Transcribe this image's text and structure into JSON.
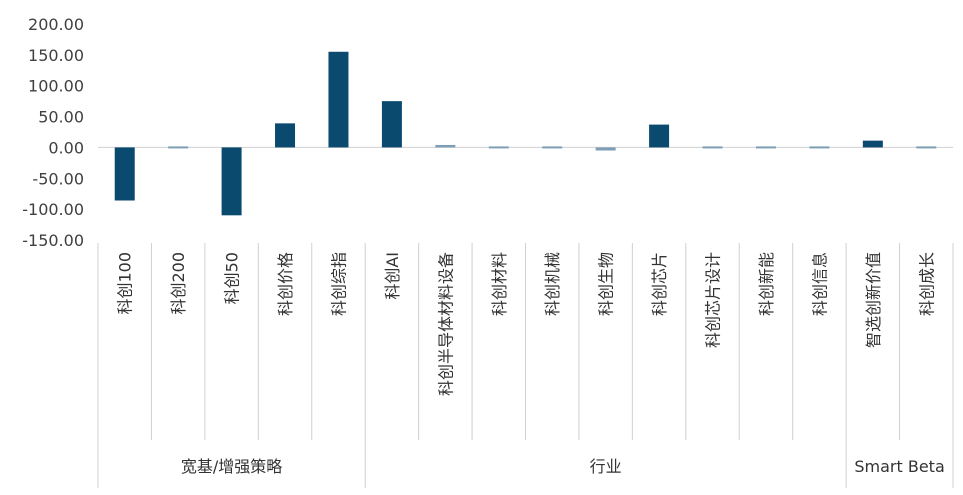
{
  "chart_data": {
    "type": "bar",
    "title": "",
    "xlabel": "",
    "ylabel": "",
    "ylim": [
      -150,
      200
    ],
    "yticks": [
      "200.00",
      "150.00",
      "100.00",
      "50.00",
      "0.00",
      "-50.00",
      "-100.00",
      "-150.00"
    ],
    "ytick_values": [
      200,
      150,
      100,
      50,
      0,
      -50,
      -100,
      -150
    ],
    "categories": [
      "科创100",
      "科创200",
      "科创50",
      "科创价格",
      "科创综指",
      "科创AI",
      "科创半导体材料设备",
      "科创材料",
      "科创机械",
      "科创生物",
      "科创芯片",
      "科创芯片设计",
      "科创新能",
      "科创信息",
      "智选创新价值",
      "科创成长"
    ],
    "values": [
      -86,
      2,
      -110,
      39,
      155,
      75,
      4,
      1,
      1,
      -5,
      37,
      2,
      2,
      3,
      11,
      1
    ],
    "groups": [
      {
        "label": "宽基/增强策略",
        "start": 0,
        "end": 5
      },
      {
        "label": "行业",
        "start": 5,
        "end": 14
      },
      {
        "label": "Smart Beta",
        "start": 14,
        "end": 16
      }
    ],
    "colors": {
      "bar_strong": "#0b4a6f",
      "bar_light": "#7d9fb5",
      "grid": "#d0d0d0"
    },
    "grid": true,
    "legend": "none"
  }
}
